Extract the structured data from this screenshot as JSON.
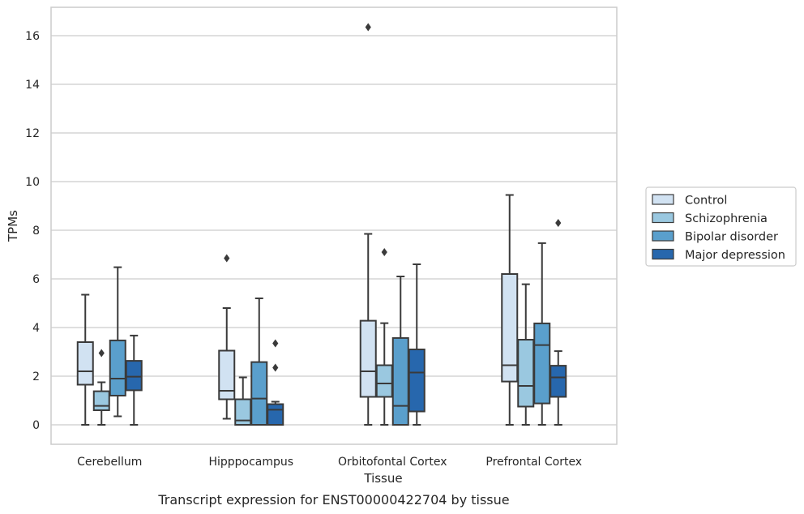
{
  "chart_data": {
    "type": "box",
    "title": "",
    "caption": "Transcript expression for ENST00000422704 by tissue",
    "xlabel": "Tissue",
    "ylabel": "TPMs",
    "ylim": [
      -0.8,
      17.2
    ],
    "yticks": [
      0,
      2,
      4,
      6,
      8,
      10,
      12,
      14,
      16
    ],
    "grid": true,
    "legend_position": "right, outside plot",
    "categories": [
      "Cerebellum",
      "Hipppocampus",
      "Orbitofontal Cortex",
      "Prefrontal Cortex"
    ],
    "series": [
      {
        "name": "Control",
        "color": "#d1e2f2",
        "boxes": [
          {
            "whisker_low": 0.0,
            "q1": 1.65,
            "median": 2.2,
            "q3": 3.4,
            "whisker_high": 5.35,
            "outliers": []
          },
          {
            "whisker_low": 0.25,
            "q1": 1.05,
            "median": 1.4,
            "q3": 3.05,
            "whisker_high": 4.8,
            "outliers": [
              6.85
            ]
          },
          {
            "whisker_low": 0.0,
            "q1": 1.15,
            "median": 2.2,
            "q3": 4.28,
            "whisker_high": 7.85,
            "outliers": [
              16.35
            ]
          },
          {
            "whisker_low": 0.0,
            "q1": 1.78,
            "median": 2.45,
            "q3": 6.2,
            "whisker_high": 9.45,
            "outliers": []
          }
        ]
      },
      {
        "name": "Schizophrenia",
        "color": "#9ac8e0",
        "boxes": [
          {
            "whisker_low": 0.0,
            "q1": 0.6,
            "median": 0.78,
            "q3": 1.38,
            "whisker_high": 1.75,
            "outliers": [
              2.95
            ]
          },
          {
            "whisker_low": 0.0,
            "q1": 0.0,
            "median": 0.18,
            "q3": 1.05,
            "whisker_high": 1.95,
            "outliers": []
          },
          {
            "whisker_low": 0.0,
            "q1": 1.15,
            "median": 1.7,
            "q3": 2.45,
            "whisker_high": 4.18,
            "outliers": [
              7.1
            ]
          },
          {
            "whisker_low": 0.0,
            "q1": 0.75,
            "median": 1.6,
            "q3": 3.5,
            "whisker_high": 5.78,
            "outliers": []
          }
        ]
      },
      {
        "name": "Bipolar disorder",
        "color": "#5a9fcc",
        "boxes": [
          {
            "whisker_low": 0.35,
            "q1": 1.2,
            "median": 1.9,
            "q3": 3.47,
            "whisker_high": 6.48,
            "outliers": []
          },
          {
            "whisker_low": 0.0,
            "q1": 0.0,
            "median": 1.08,
            "q3": 2.58,
            "whisker_high": 5.2,
            "outliers": []
          },
          {
            "whisker_low": 0.0,
            "q1": 0.0,
            "median": 0.78,
            "q3": 3.57,
            "whisker_high": 6.1,
            "outliers": []
          },
          {
            "whisker_low": 0.0,
            "q1": 0.88,
            "median": 3.28,
            "q3": 4.17,
            "whisker_high": 7.47,
            "outliers": []
          }
        ]
      },
      {
        "name": "Major depression",
        "color": "#2767ad",
        "boxes": [
          {
            "whisker_low": 0.0,
            "q1": 1.42,
            "median": 1.98,
            "q3": 2.63,
            "whisker_high": 3.67,
            "outliers": []
          },
          {
            "whisker_low": 0.0,
            "q1": 0.0,
            "median": 0.62,
            "q3": 0.85,
            "whisker_high": 0.95,
            "outliers": [
              2.35,
              3.35
            ]
          },
          {
            "whisker_low": 0.0,
            "q1": 0.55,
            "median": 2.15,
            "q3": 3.1,
            "whisker_high": 6.6,
            "outliers": []
          },
          {
            "whisker_low": 0.0,
            "q1": 1.15,
            "median": 1.95,
            "q3": 2.43,
            "whisker_high": 3.03,
            "outliers": [
              8.3
            ]
          }
        ]
      }
    ]
  }
}
